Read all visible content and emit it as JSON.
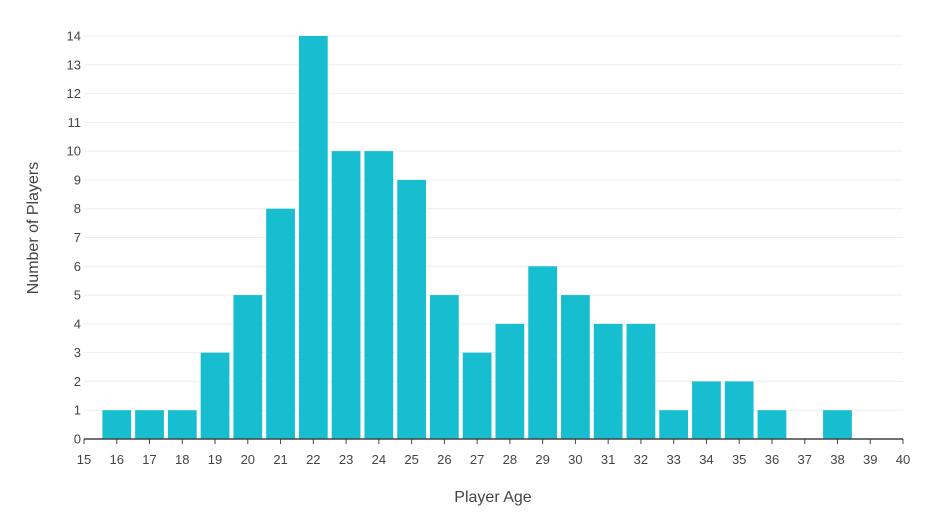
{
  "chart_data": {
    "type": "bar",
    "title": "",
    "xlabel": "Player Age",
    "ylabel": "Number of Players",
    "xlim": [
      15,
      40
    ],
    "ylim": [
      0,
      14
    ],
    "x_ticks": [
      15,
      16,
      17,
      18,
      19,
      20,
      21,
      22,
      23,
      24,
      25,
      26,
      27,
      28,
      29,
      30,
      31,
      32,
      33,
      34,
      35,
      36,
      37,
      38,
      39,
      40
    ],
    "y_ticks": [
      0,
      1,
      2,
      3,
      4,
      5,
      6,
      7,
      8,
      9,
      10,
      11,
      12,
      13,
      14
    ],
    "categories": [
      16,
      17,
      18,
      19,
      20,
      21,
      22,
      23,
      24,
      25,
      26,
      27,
      28,
      29,
      30,
      31,
      32,
      33,
      34,
      35,
      36,
      37,
      38,
      39
    ],
    "values": [
      1,
      1,
      1,
      3,
      5,
      8,
      14,
      10,
      10,
      9,
      5,
      3,
      4,
      6,
      5,
      4,
      4,
      1,
      2,
      2,
      1,
      0,
      1,
      0
    ],
    "grid": true,
    "colors": {
      "bar": "#17becf",
      "grid": "#eeeeee",
      "axis": "#444444",
      "text": "#444444"
    }
  }
}
